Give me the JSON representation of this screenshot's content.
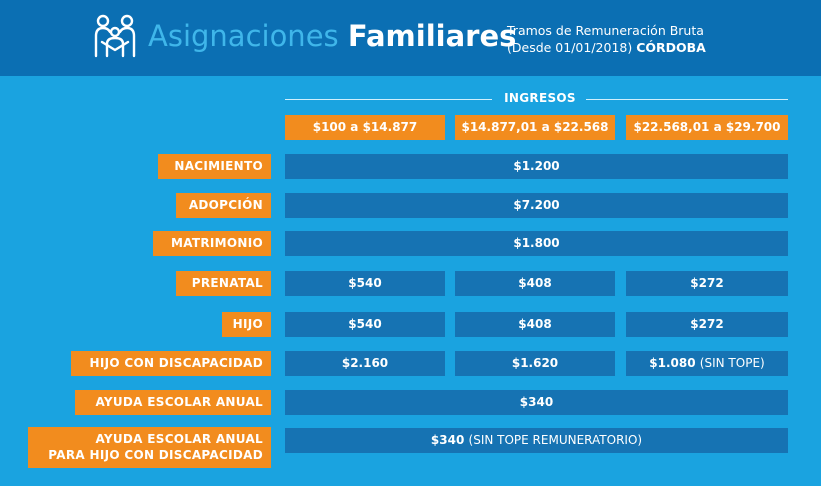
{
  "header": {
    "title_light": "Asignaciones",
    "title_bold": "Familiares",
    "subtitle_line1": "Tramos de Remuneración Bruta",
    "subtitle_line2_prefix": "(Desde 01/01/2018)",
    "subtitle_line2_bold": "CÓRDOBA",
    "logo_icon": "family-icon"
  },
  "table": {
    "ingresos_label": "INGRESOS",
    "ranges": [
      "$100 a $14.877",
      "$14.877,01  a $22.568",
      "$22.568,01  a $29.700"
    ],
    "rows": [
      {
        "label": "NACIMIENTO",
        "values": [
          "$1.200"
        ]
      },
      {
        "label": "ADOPCIÓN",
        "values": [
          "$7.200"
        ]
      },
      {
        "label": "MATRIMONIO",
        "values": [
          "$1.800"
        ]
      },
      {
        "label": "PRENATAL",
        "values": [
          "$540",
          "$408",
          "$272"
        ]
      },
      {
        "label": "HIJO",
        "values": [
          "$540",
          "$408",
          "$272"
        ]
      },
      {
        "label": "HIJO CON DISCAPACIDAD",
        "values": [
          "$2.160",
          "$1.620",
          "$1.080"
        ],
        "last_note": "(SIN TOPE)"
      },
      {
        "label": "AYUDA ESCOLAR ANUAL",
        "values": [
          "$340"
        ]
      },
      {
        "label_line1": "AYUDA ESCOLAR ANUAL",
        "label_line2": "PARA HIJO CON DISCAPACIDAD",
        "values": [
          "$340"
        ],
        "note": "(SIN TOPE REMUNERATORIO)"
      }
    ]
  },
  "colors": {
    "background": "#1aa3e0",
    "header": "#0b6fb3",
    "orange": "#f28c1e",
    "cell": "#1673b3"
  }
}
